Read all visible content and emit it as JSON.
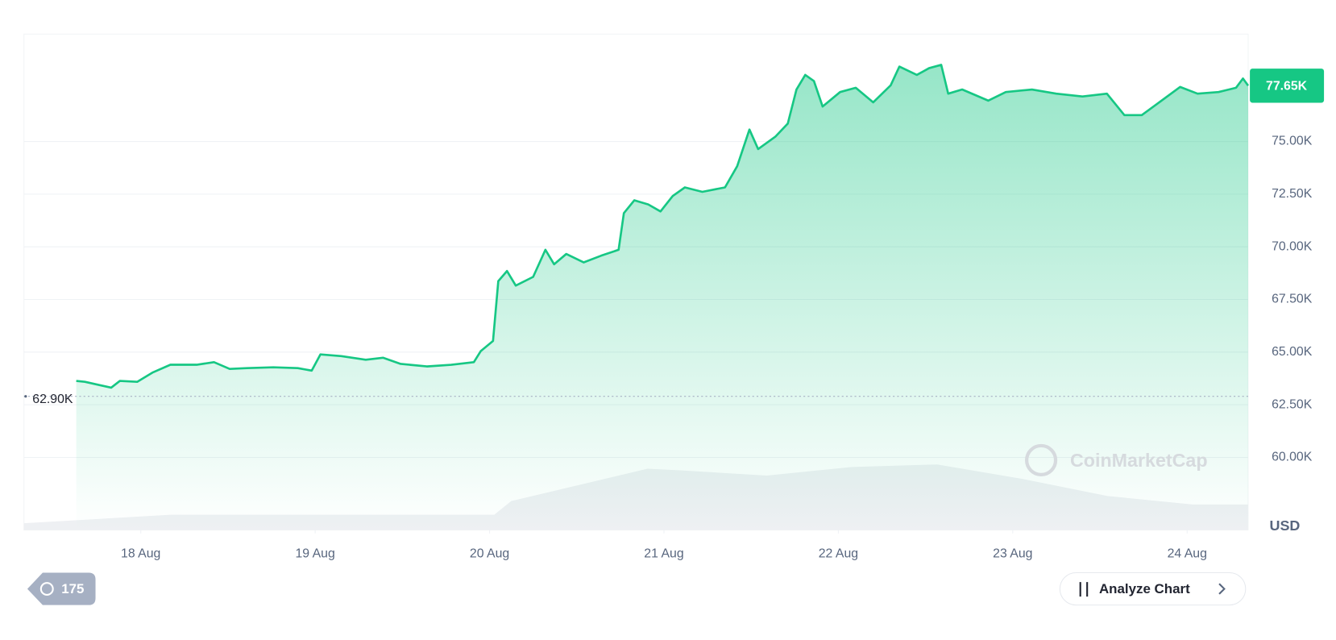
{
  "chart_data": {
    "type": "line",
    "series": [
      {
        "color": "#16c784",
        "x": [
          17.63,
          17.68,
          17.83,
          17.88,
          17.98,
          18.07,
          18.17,
          18.32,
          18.42,
          18.51,
          18.61,
          18.76,
          18.9,
          18.98,
          19.03,
          19.15,
          19.29,
          19.39,
          19.49,
          19.64,
          19.78,
          19.91,
          19.95,
          20.02,
          20.05,
          20.1,
          20.15,
          20.25,
          20.32,
          20.37,
          20.44,
          20.54,
          20.64,
          20.74,
          20.77,
          20.83,
          20.91,
          20.98,
          21.05,
          21.12,
          21.22,
          21.35,
          21.42,
          21.49,
          21.54,
          21.64,
          21.71,
          21.76,
          21.81,
          21.86,
          21.91,
          22.01,
          22.1,
          22.2,
          22.3,
          22.35,
          22.45,
          22.52,
          22.59,
          22.63,
          22.71,
          22.86,
          22.96,
          23.11,
          23.25,
          23.4,
          23.54,
          23.64,
          23.74,
          23.84,
          23.96,
          24.06,
          24.18,
          24.28,
          24.32,
          24.35
        ],
        "values": [
          63.63,
          63.59,
          63.31,
          63.63,
          63.59,
          64.04,
          64.4,
          64.4,
          64.52,
          64.2,
          64.24,
          64.28,
          64.24,
          64.12,
          64.89,
          64.81,
          64.64,
          64.73,
          64.44,
          64.32,
          64.4,
          64.52,
          65.05,
          65.53,
          68.37,
          68.85,
          68.16,
          68.57,
          69.86,
          69.17,
          69.66,
          69.26,
          69.58,
          69.86,
          71.6,
          72.21,
          72.01,
          71.68,
          72.41,
          72.82,
          72.61,
          72.82,
          73.83,
          75.57,
          74.64,
          75.24,
          75.85,
          77.47,
          78.16,
          77.87,
          76.66,
          77.35,
          77.55,
          76.86,
          77.67,
          78.56,
          78.16,
          78.48,
          78.64,
          77.27,
          77.47,
          76.94,
          77.35,
          77.47,
          77.27,
          77.14,
          77.27,
          76.25,
          76.25,
          76.86,
          77.59,
          77.27,
          77.35,
          77.55,
          77.99,
          77.65
        ]
      }
    ],
    "current_price": {
      "value": 77.65,
      "label": "77.65K"
    },
    "open_price": {
      "value": 62.9,
      "label": "62.90K"
    },
    "xlim": [
      17.33,
      24.35
    ],
    "xticks": [
      {
        "value": 18,
        "label": "18 Aug"
      },
      {
        "value": 19,
        "label": "19 Aug"
      },
      {
        "value": 20,
        "label": "20 Aug"
      },
      {
        "value": 21,
        "label": "21 Aug"
      },
      {
        "value": 22,
        "label": "22 Aug"
      },
      {
        "value": 23,
        "label": "23 Aug"
      },
      {
        "value": 24,
        "label": "24 Aug"
      }
    ],
    "ylim": [
      56.55,
      80.1
    ],
    "yticks": [
      {
        "value": 60,
        "label": "60.00K"
      },
      {
        "value": 62.5,
        "label": "62.50K"
      },
      {
        "value": 65,
        "label": "65.00K"
      },
      {
        "value": 67.5,
        "label": "67.50K"
      },
      {
        "value": 70,
        "label": "70.00K"
      },
      {
        "value": 72.5,
        "label": "72.50K"
      },
      {
        "value": 75,
        "label": "75.00K"
      }
    ],
    "y_axis_label": "USD",
    "grid": true,
    "watermark": "CoinMarketCap"
  },
  "ui": {
    "history_badge": "175",
    "analyze_button": "Analyze Chart"
  }
}
